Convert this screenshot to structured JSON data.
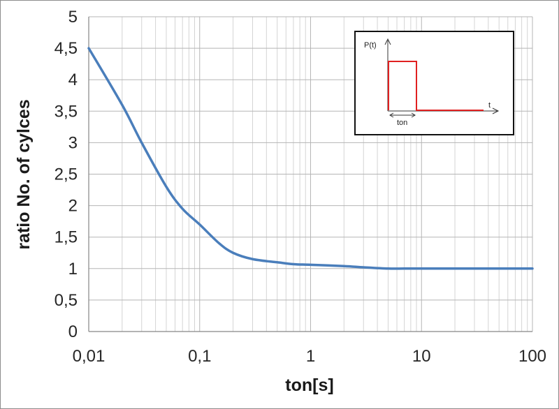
{
  "chart_data": {
    "type": "line",
    "title": "",
    "xlabel": "ton[s]",
    "ylabel": "ratio No. of cylces",
    "x_scale": "log",
    "xlim": [
      0.01,
      100
    ],
    "ylim": [
      0,
      5
    ],
    "x_ticks": [
      0.01,
      0.1,
      1,
      10,
      100
    ],
    "x_tick_labels": [
      "0,01",
      "0,1",
      "1",
      "10",
      "100"
    ],
    "y_ticks": [
      0,
      0.5,
      1,
      1.5,
      2,
      2.5,
      3,
      3.5,
      4,
      4.5,
      5
    ],
    "y_tick_labels": [
      "0",
      "0,5",
      "1",
      "1,5",
      "2",
      "2,5",
      "3",
      "3,5",
      "4",
      "4,5",
      "5"
    ],
    "grid": true,
    "legend": "none",
    "series": [
      {
        "color": "#4a7ebb",
        "x": [
          0.01,
          0.02,
          0.03,
          0.05,
          0.07,
          0.1,
          0.15,
          0.2,
          0.3,
          0.5,
          0.7,
          1,
          2,
          3,
          5,
          7,
          10,
          20,
          50,
          100
        ],
        "y": [
          4.5,
          3.6,
          3.0,
          2.3,
          1.95,
          1.7,
          1.4,
          1.25,
          1.15,
          1.1,
          1.07,
          1.06,
          1.04,
          1.02,
          1.0,
          1.0,
          1.0,
          1.0,
          1.0,
          1.0
        ]
      }
    ],
    "inset": {
      "y_label": "P(t)",
      "x_label": "t",
      "pulse_label": "ton",
      "pulse_color": "#e02020"
    }
  }
}
